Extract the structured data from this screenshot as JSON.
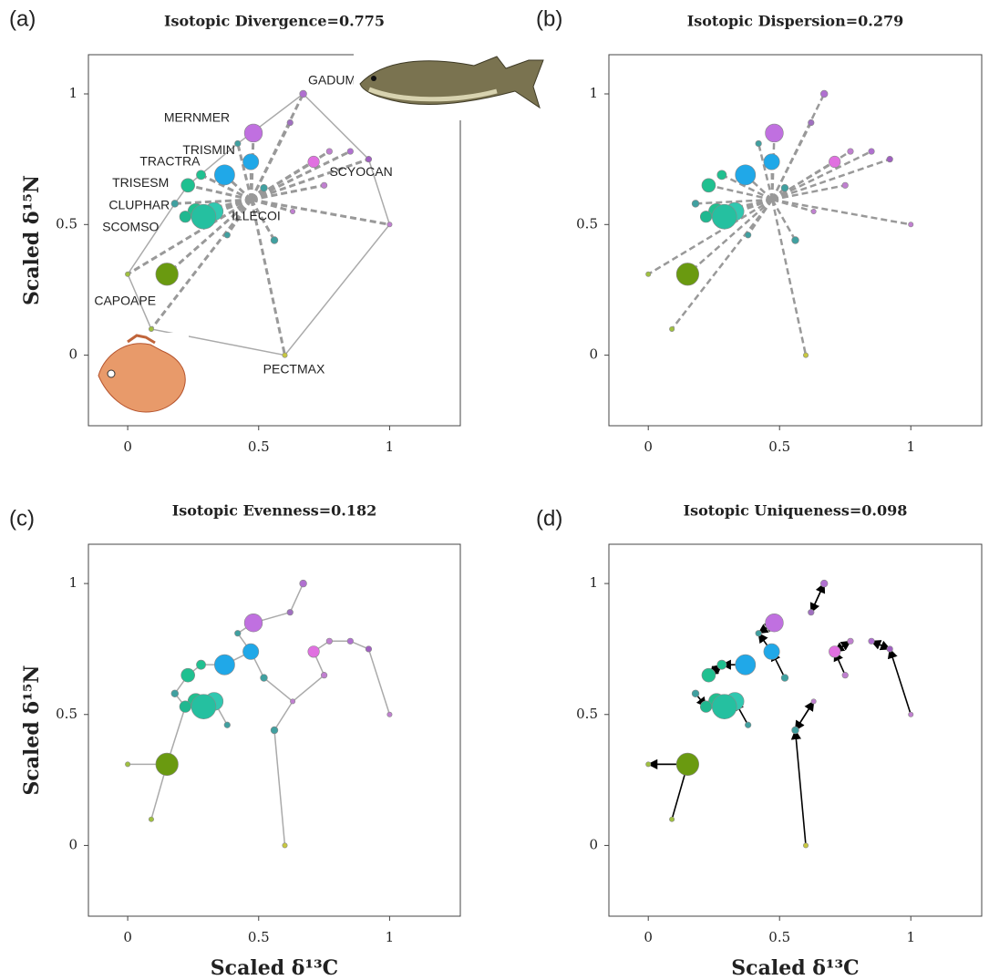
{
  "chart_data": [
    {
      "type": "scatter",
      "panel": "(a)",
      "title": "Isotopic Divergence=0.775",
      "ylabel": "Scaled δ¹⁵N",
      "xlim": [
        -0.15,
        1.27
      ],
      "ylim": [
        -0.27,
        1.15
      ],
      "xticks": [
        0,
        0.5,
        1
      ],
      "yticks": [
        0,
        0.5,
        1
      ],
      "series": [
        {
          "x": [
            0.67,
            0.48,
            0.47,
            0.37,
            0.23,
            0.71,
            0.26,
            0.33,
            0.22,
            0.15,
            0.6,
            0.29,
            0.28,
            0,
            0.09,
            0.92,
            1,
            0.85,
            0.77,
            0.62,
            0.42,
            0.52,
            0.56,
            0.18,
            0.38,
            0.75,
            0.63
          ],
          "y": [
            1,
            0.85,
            0.74,
            0.69,
            0.65,
            0.74,
            0.55,
            0.55,
            0.53,
            0.31,
            0,
            0.53,
            0.69,
            0.31,
            0.1,
            0.75,
            0.5,
            0.78,
            0.78,
            0.89,
            0.81,
            0.64,
            0.44,
            0.58,
            0.46,
            0.65,
            0.55
          ],
          "sizes": [
            2,
            7,
            6,
            8,
            5,
            4,
            6,
            7,
            4,
            9,
            1,
            10,
            3,
            1,
            1,
            1.5,
            1,
            1.5,
            1.5,
            1.5,
            1.5,
            2,
            2,
            2,
            1.5,
            1.5,
            1
          ],
          "colors": [
            "#b070d0",
            "#c070e0",
            "#20a8e8",
            "#20a8e8",
            "#20c090",
            "#e070e0",
            "#20c090",
            "#30c8b0",
            "#20b890",
            "#6a9a10",
            "#c8c840",
            "#25c0a0",
            "#20c090",
            "#a0c040",
            "#a0c040",
            "#a060c0",
            "#c080d0",
            "#b070d0",
            "#c080d0",
            "#a070c0",
            "#40a0a0",
            "#40a0a0",
            "#40a0a0",
            "#40a0a0",
            "#40a0a0",
            "#c080d0",
            "#c080d0"
          ],
          "labels": [
            "GADUMOR",
            "MERNMER",
            "TRISMIN",
            "TRACTRA",
            "TRISESM",
            "SCYOCAN",
            "CLUPHAR",
            "ILLECOI",
            "SCOMSO",
            "CAPOAPE",
            "PECTMAX",
            null,
            null,
            null,
            null,
            null,
            null,
            null,
            null,
            null,
            null,
            null,
            null,
            null,
            null,
            null,
            null
          ]
        }
      ]
    },
    {
      "type": "scatter",
      "panel": "(b)",
      "title": "Isotopic Dispersion=0.279",
      "xlim": [
        -0.15,
        1.27
      ],
      "ylim": [
        -0.27,
        1.15
      ],
      "xticks": [
        0,
        0.5,
        1
      ],
      "yticks": [
        0,
        0.5,
        1
      ],
      "series": [
        {
          "x": [
            0.67,
            0.48,
            0.47,
            0.37,
            0.23,
            0.71,
            0.26,
            0.33,
            0.22,
            0.15,
            0.6,
            0.29,
            0.28,
            0,
            0.09,
            0.92,
            1,
            0.85,
            0.77,
            0.62,
            0.42,
            0.52,
            0.56,
            0.18,
            0.38,
            0.75,
            0.63
          ],
          "y": [
            1,
            0.85,
            0.74,
            0.69,
            0.65,
            0.74,
            0.55,
            0.55,
            0.53,
            0.31,
            0,
            0.53,
            0.69,
            0.31,
            0.1,
            0.75,
            0.5,
            0.78,
            0.78,
            0.89,
            0.81,
            0.64,
            0.44,
            0.58,
            0.46,
            0.65,
            0.55
          ],
          "sizes": [
            2,
            7,
            6,
            8,
            5,
            4,
            6,
            7,
            4,
            9,
            1,
            10,
            3,
            1,
            1,
            1.5,
            1,
            1.5,
            1.5,
            1.5,
            1.5,
            2,
            2,
            2,
            1.5,
            1.5,
            1
          ],
          "colors": [
            "#b070d0",
            "#c070e0",
            "#20a8e8",
            "#20a8e8",
            "#20c090",
            "#e070e0",
            "#20c090",
            "#30c8b0",
            "#20b890",
            "#6a9a10",
            "#c8c840",
            "#25c0a0",
            "#20c090",
            "#a0c040",
            "#a0c040",
            "#a060c0",
            "#c080d0",
            "#b070d0",
            "#c080d0",
            "#a070c0",
            "#40a0a0",
            "#40a0a0",
            "#40a0a0",
            "#40a0a0",
            "#40a0a0",
            "#c080d0",
            "#c080d0"
          ]
        }
      ]
    },
    {
      "type": "scatter",
      "panel": "(c)",
      "title": "Isotopic Evenness=0.182",
      "ylabel": "Scaled δ¹⁵N",
      "xlabel": "Scaled δ¹³C",
      "xlim": [
        -0.15,
        1.27
      ],
      "ylim": [
        -0.27,
        1.15
      ],
      "xticks": [
        0,
        0.5,
        1
      ],
      "yticks": [
        0,
        0.5,
        1
      ],
      "series": [
        {
          "x": [
            0.67,
            0.48,
            0.47,
            0.37,
            0.23,
            0.71,
            0.26,
            0.33,
            0.22,
            0.15,
            0.6,
            0.29,
            0.28,
            0,
            0.09,
            0.92,
            1,
            0.85,
            0.77,
            0.62,
            0.42,
            0.52,
            0.56,
            0.18,
            0.38,
            0.75,
            0.63
          ],
          "y": [
            1,
            0.85,
            0.74,
            0.69,
            0.65,
            0.74,
            0.55,
            0.55,
            0.53,
            0.31,
            0,
            0.53,
            0.69,
            0.31,
            0.1,
            0.75,
            0.5,
            0.78,
            0.78,
            0.89,
            0.81,
            0.64,
            0.44,
            0.58,
            0.46,
            0.65,
            0.55
          ],
          "sizes": [
            2,
            7,
            6,
            8,
            5,
            4,
            6,
            7,
            4,
            9,
            1,
            10,
            3,
            1,
            1,
            1.5,
            1,
            1.5,
            1.5,
            1.5,
            1.5,
            2,
            2,
            2,
            1.5,
            1.5,
            1
          ],
          "colors": [
            "#b070d0",
            "#c070e0",
            "#20a8e8",
            "#20a8e8",
            "#20c090",
            "#e070e0",
            "#20c090",
            "#30c8b0",
            "#20b890",
            "#6a9a10",
            "#c8c840",
            "#25c0a0",
            "#20c090",
            "#a0c040",
            "#a0c040",
            "#a060c0",
            "#c080d0",
            "#b070d0",
            "#c080d0",
            "#a070c0",
            "#40a0a0",
            "#40a0a0",
            "#40a0a0",
            "#40a0a0",
            "#40a0a0",
            "#c080d0",
            "#c080d0"
          ]
        }
      ]
    },
    {
      "type": "scatter",
      "panel": "(d)",
      "title": "Isotopic Uniqueness=0.098",
      "xlabel": "Scaled δ¹³C",
      "xlim": [
        -0.15,
        1.27
      ],
      "ylim": [
        -0.27,
        1.15
      ],
      "xticks": [
        0,
        0.5,
        1
      ],
      "yticks": [
        0,
        0.5,
        1
      ],
      "series": [
        {
          "x": [
            0.67,
            0.48,
            0.47,
            0.37,
            0.23,
            0.71,
            0.26,
            0.33,
            0.22,
            0.15,
            0.6,
            0.29,
            0.28,
            0,
            0.09,
            0.92,
            1,
            0.85,
            0.77,
            0.62,
            0.42,
            0.52,
            0.56,
            0.18,
            0.38,
            0.75,
            0.63
          ],
          "y": [
            1,
            0.85,
            0.74,
            0.69,
            0.65,
            0.74,
            0.55,
            0.55,
            0.53,
            0.31,
            0,
            0.53,
            0.69,
            0.31,
            0.1,
            0.75,
            0.5,
            0.78,
            0.78,
            0.89,
            0.81,
            0.64,
            0.44,
            0.58,
            0.46,
            0.65,
            0.55
          ],
          "sizes": [
            2,
            7,
            6,
            8,
            5,
            4,
            6,
            7,
            4,
            9,
            1,
            10,
            3,
            1,
            1,
            1.5,
            1,
            1.5,
            1.5,
            1.5,
            1.5,
            2,
            2,
            2,
            1.5,
            1.5,
            1
          ],
          "colors": [
            "#b070d0",
            "#c070e0",
            "#20a8e8",
            "#20a8e8",
            "#20c090",
            "#e070e0",
            "#20c090",
            "#30c8b0",
            "#20b890",
            "#6a9a10",
            "#c8c840",
            "#25c0a0",
            "#20c090",
            "#a0c040",
            "#a0c040",
            "#a060c0",
            "#c080d0",
            "#b070d0",
            "#c080d0",
            "#a070c0",
            "#40a0a0",
            "#40a0a0",
            "#40a0a0",
            "#40a0a0",
            "#40a0a0",
            "#c080d0",
            "#c080d0"
          ]
        }
      ]
    }
  ]
}
